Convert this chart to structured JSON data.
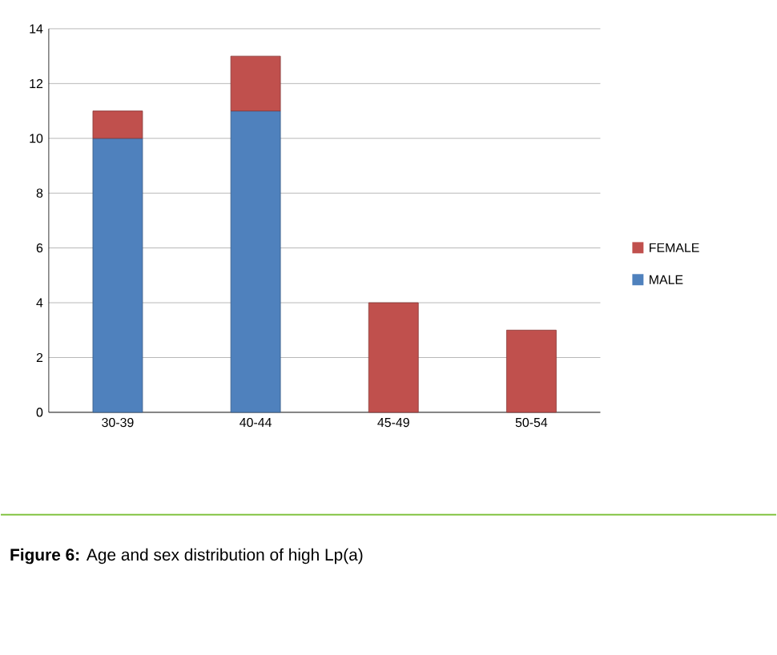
{
  "chart_data": {
    "type": "bar",
    "stacked": true,
    "categories": [
      "30-39",
      "40-44",
      "45-49",
      "50-54"
    ],
    "series": [
      {
        "name": "MALE",
        "color": "#4f81bd",
        "values": [
          10,
          11,
          null,
          null
        ]
      },
      {
        "name": "FEMALE",
        "color": "#c0504d",
        "values": [
          1,
          2,
          4,
          3
        ]
      }
    ],
    "ylim": [
      0,
      14
    ],
    "yticks": [
      0,
      2,
      4,
      6,
      8,
      10,
      12,
      14
    ],
    "grid": "y",
    "legend": "right",
    "annotations": [
      "**Figure 6:** Age and sex distribution of high Lp(a)"
    ]
  }
}
